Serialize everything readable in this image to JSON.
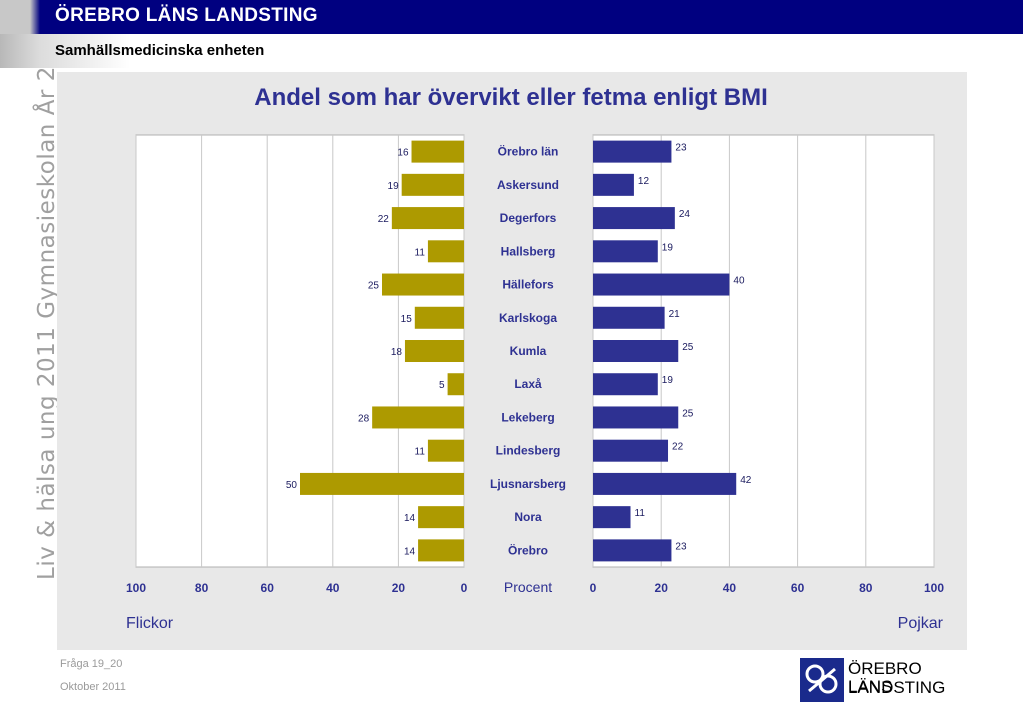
{
  "header": {
    "title": "ÖREBRO LÄNS LANDSTING",
    "subtitle": "Samhällsmedicinska enheten"
  },
  "side_text": "Liv & hälsa ung 2011 Gymnasieskolan År 2",
  "footer": {
    "question": "Fråga 19_20",
    "date": "Oktober 2011"
  },
  "logo": {
    "line1": "ÖREBRO LÄNS",
    "line2": "LANDSTING",
    "color": "#1a2a8c"
  },
  "chart_data": {
    "type": "bar",
    "title": "Andel som har övervikt eller fetma enligt BMI",
    "center_label": "Procent",
    "categories": [
      "Örebro län",
      "Askersund",
      "Degerfors",
      "Hallsberg",
      "Hällefors",
      "Karlskoga",
      "Kumla",
      "Laxå",
      "Lekeberg",
      "Lindesberg",
      "Ljusnarsberg",
      "Nora",
      "Örebro"
    ],
    "series": [
      {
        "name": "Flickor",
        "color": "#ad9a00",
        "values": [
          16,
          19,
          22,
          11,
          25,
          15,
          18,
          5,
          28,
          11,
          50,
          14,
          14
        ]
      },
      {
        "name": "Pojkar",
        "color": "#2e3192",
        "values": [
          23,
          12,
          24,
          19,
          40,
          21,
          25,
          19,
          25,
          22,
          42,
          11,
          23
        ]
      }
    ],
    "xlim": [
      0,
      100
    ],
    "ticks": [
      0,
      20,
      40,
      60,
      80,
      100
    ],
    "grid": true
  }
}
